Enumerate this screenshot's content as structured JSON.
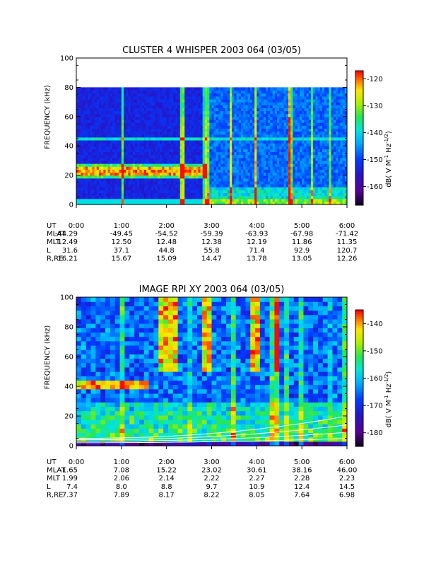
{
  "chart_data": [
    {
      "type": "heatmap",
      "title": "CLUSTER 4 WHISPER 2003 064 (03/05)",
      "ylabel": "FREQUENCY (kHz)",
      "y_ticks": [
        "0",
        "20",
        "40",
        "60",
        "80",
        "100"
      ],
      "ylim": [
        0,
        100
      ],
      "data_ylim": [
        0,
        80
      ],
      "x_ticks": [
        "0:00",
        "1:00",
        "2:00",
        "3:00",
        "4:00",
        "5:00",
        "6:00"
      ],
      "colorbar": {
        "label": "dB( V M",
        "ticks": [
          "-120",
          "-130",
          "-140",
          "-150",
          "-160"
        ],
        "tick_values": [
          -120,
          -130,
          -140,
          -150,
          -160
        ],
        "range": [
          -167,
          -117
        ]
      },
      "features": [
        {
          "start_hour": 0.0,
          "end_hour": 2.9,
          "freq_khz": 23
        },
        {
          "start_hour": 0.0,
          "end_hour": 6.0,
          "freq_khz": 45
        }
      ],
      "ephemeris": {
        "row_labels": [
          "UT",
          "MLAT",
          "MLT",
          "L",
          "R,RE"
        ],
        "columns": [
          [
            "0:00",
            "-44.29",
            "12.49",
            "31.6",
            "16.21"
          ],
          [
            "1:00",
            "-49.45",
            "12.50",
            "37.1",
            "15.67"
          ],
          [
            "2:00",
            "-54.52",
            "12.48",
            "44.8",
            "15.09"
          ],
          [
            "3:00",
            "-59.39",
            "12.38",
            "55.8",
            "14.47"
          ],
          [
            "4:00",
            "-63.93",
            "12.19",
            "71.4",
            "13.78"
          ],
          [
            "5:00",
            "-67.98",
            "11.86",
            "92.9",
            "13.05"
          ],
          [
            "6:00",
            "-71.42",
            "11.35",
            "120.7",
            "12.26"
          ]
        ]
      }
    },
    {
      "type": "heatmap",
      "title": "IMAGE RPI XY 2003 064 (03/05)",
      "ylabel": "FREQUENCY (kHz)",
      "y_ticks": [
        "0",
        "20",
        "40",
        "60",
        "80",
        "100"
      ],
      "ylim": [
        0,
        100
      ],
      "data_ylim": [
        0,
        100
      ],
      "x_ticks": [
        "0:00",
        "1:00",
        "2:00",
        "3:00",
        "4:00",
        "5:00",
        "6:00"
      ],
      "colorbar": {
        "label": "dB( V M",
        "ticks": [
          "-140",
          "-150",
          "-160",
          "-170",
          "-180"
        ],
        "tick_values": [
          -140,
          -150,
          -160,
          -170,
          -180
        ],
        "range": [
          -185,
          -135
        ]
      },
      "features": [
        {
          "start_hour": 0.0,
          "end_hour": 1.6,
          "freq_khz": 41
        }
      ],
      "ephemeris": {
        "row_labels": [
          "UT",
          "MLAT",
          "MLT",
          "L",
          "R,RE"
        ],
        "columns": [
          [
            "0:00",
            "-1.65",
            "1.99",
            "7.4",
            "7.37"
          ],
          [
            "1:00",
            "7.08",
            "2.06",
            "8.0",
            "7.89"
          ],
          [
            "2:00",
            "15.22",
            "2.14",
            "8.8",
            "8.17"
          ],
          [
            "3:00",
            "23.02",
            "2.22",
            "9.7",
            "8.22"
          ],
          [
            "4:00",
            "30.61",
            "2.27",
            "10.9",
            "8.05"
          ],
          [
            "5:00",
            "38.16",
            "2.28",
            "12.4",
            "7.64"
          ],
          [
            "6:00",
            "46.00",
            "2.23",
            "14.5",
            "6.98"
          ]
        ]
      }
    }
  ]
}
